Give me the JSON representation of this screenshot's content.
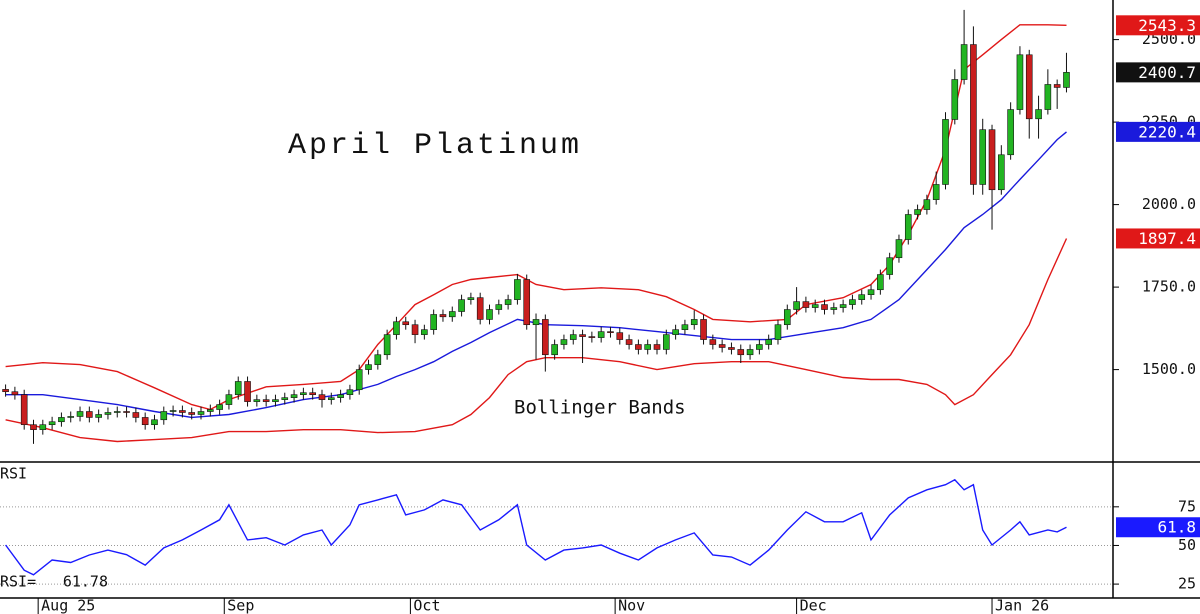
{
  "chart_data": [
    {
      "type": "candlestick",
      "title": "April Platinum",
      "annotation": "Bollinger Bands",
      "xlim": [
        -0.6,
        119
      ],
      "ylim": [
        1220,
        2620
      ],
      "yticks": [
        {
          "value": 1500,
          "label": "1500.0"
        },
        {
          "value": 1750,
          "label": "1750.0"
        },
        {
          "value": 2000,
          "label": "2000.0"
        },
        {
          "value": 2250,
          "label": "2250.0"
        },
        {
          "value": 2500,
          "label": "2500.0"
        }
      ],
      "up_color": "#22b422",
      "down_color": "#c81e1e",
      "last_color": "#111111",
      "open": [
        1440,
        1433,
        1424,
        1333,
        1318,
        1333,
        1342,
        1355,
        1358,
        1373,
        1355,
        1364,
        1370,
        1373,
        1370,
        1355,
        1333,
        1348,
        1373,
        1376,
        1370,
        1364,
        1373,
        1379,
        1394,
        1424,
        1464,
        1403,
        1409,
        1403,
        1409,
        1415,
        1424,
        1430,
        1424,
        1409,
        1415,
        1424,
        1439,
        1500,
        1515,
        1545,
        1606,
        1645,
        1636,
        1606,
        1621,
        1667,
        1660,
        1676,
        1712,
        1718,
        1652,
        1682,
        1697,
        1712,
        1773,
        1636,
        1652,
        1545,
        1576,
        1591,
        1606,
        1600,
        1597,
        1615,
        1612,
        1591,
        1576,
        1561,
        1576,
        1561,
        1606,
        1621,
        1636,
        1652,
        1591,
        1576,
        1567,
        1561,
        1545,
        1561,
        1576,
        1591,
        1636,
        1682,
        1706,
        1688,
        1697,
        1682,
        1688,
        1697,
        1712,
        1727,
        1742,
        1788,
        1839,
        1894,
        1970,
        1985,
        2015,
        2061,
        2258,
        2379,
        2485,
        2061,
        2227,
        2045,
        2151,
        2288,
        2454,
        2260,
        2288,
        2364,
        2355
      ],
      "high": [
        1455,
        1448,
        1439,
        1348,
        1348,
        1357,
        1370,
        1373,
        1388,
        1388,
        1379,
        1385,
        1388,
        1388,
        1385,
        1370,
        1363,
        1388,
        1391,
        1391,
        1385,
        1388,
        1394,
        1409,
        1439,
        1479,
        1479,
        1424,
        1424,
        1424,
        1430,
        1439,
        1445,
        1445,
        1439,
        1430,
        1439,
        1454,
        1515,
        1530,
        1560,
        1621,
        1660,
        1660,
        1651,
        1636,
        1682,
        1682,
        1691,
        1727,
        1733,
        1733,
        1697,
        1712,
        1727,
        1790,
        1788,
        1670,
        1667,
        1591,
        1606,
        1621,
        1621,
        1615,
        1630,
        1630,
        1627,
        1606,
        1591,
        1591,
        1591,
        1621,
        1636,
        1651,
        1680,
        1667,
        1606,
        1591,
        1582,
        1576,
        1576,
        1591,
        1606,
        1651,
        1697,
        1750,
        1721,
        1712,
        1712,
        1703,
        1712,
        1727,
        1742,
        1757,
        1803,
        1854,
        1909,
        1985,
        2000,
        2030,
        2100,
        2280,
        2410,
        2590,
        2540,
        2260,
        2242,
        2180,
        2310,
        2480,
        2469,
        2330,
        2410,
        2379,
        2460
      ],
      "low": [
        1418,
        1409,
        1318,
        1275,
        1303,
        1318,
        1327,
        1340,
        1343,
        1340,
        1340,
        1349,
        1355,
        1355,
        1340,
        1318,
        1318,
        1333,
        1358,
        1355,
        1349,
        1349,
        1358,
        1364,
        1379,
        1409,
        1388,
        1388,
        1388,
        1388,
        1394,
        1400,
        1409,
        1409,
        1385,
        1394,
        1400,
        1409,
        1424,
        1485,
        1500,
        1530,
        1591,
        1621,
        1580,
        1591,
        1606,
        1645,
        1645,
        1661,
        1697,
        1637,
        1637,
        1667,
        1682,
        1697,
        1621,
        1530,
        1494,
        1530,
        1561,
        1576,
        1520,
        1582,
        1582,
        1597,
        1576,
        1561,
        1546,
        1546,
        1546,
        1546,
        1591,
        1606,
        1621,
        1576,
        1561,
        1552,
        1546,
        1520,
        1530,
        1546,
        1561,
        1576,
        1621,
        1667,
        1673,
        1673,
        1667,
        1667,
        1673,
        1682,
        1697,
        1712,
        1727,
        1773,
        1824,
        1879,
        1955,
        1970,
        2000,
        2046,
        2243,
        2364,
        2030,
        2030,
        1924,
        2030,
        2136,
        2273,
        2200,
        2200,
        2273,
        2290,
        2340
      ],
      "close": [
        1433,
        1424,
        1333,
        1318,
        1333,
        1342,
        1355,
        1358,
        1373,
        1355,
        1364,
        1370,
        1373,
        1370,
        1355,
        1333,
        1348,
        1373,
        1376,
        1370,
        1364,
        1373,
        1379,
        1394,
        1424,
        1464,
        1403,
        1409,
        1403,
        1409,
        1415,
        1424,
        1430,
        1424,
        1409,
        1415,
        1424,
        1439,
        1500,
        1515,
        1545,
        1606,
        1645,
        1636,
        1606,
        1621,
        1667,
        1660,
        1676,
        1712,
        1718,
        1652,
        1682,
        1697,
        1712,
        1773,
        1636,
        1652,
        1545,
        1576,
        1591,
        1606,
        1600,
        1597,
        1615,
        1612,
        1591,
        1576,
        1561,
        1576,
        1561,
        1606,
        1621,
        1636,
        1652,
        1591,
        1576,
        1567,
        1561,
        1545,
        1561,
        1576,
        1591,
        1636,
        1682,
        1706,
        1688,
        1697,
        1682,
        1688,
        1697,
        1712,
        1727,
        1742,
        1788,
        1839,
        1894,
        1970,
        1985,
        2015,
        2061,
        2258,
        2379,
        2485,
        2061,
        2227,
        2045,
        2151,
        2288,
        2454,
        2260,
        2288,
        2364,
        2355,
        2400.7
      ],
      "bands": [
        {
          "color": "#e01818",
          "x": [
            0,
            4,
            8,
            12,
            16,
            20,
            22,
            24,
            28,
            32,
            36,
            38,
            40,
            42,
            44,
            46,
            48,
            50,
            52,
            55,
            57,
            60,
            64,
            68,
            71,
            74,
            76,
            80,
            84,
            86,
            90,
            93,
            95,
            97,
            99,
            101,
            102,
            103,
            105,
            107,
            109,
            112,
            114
          ],
          "values": [
            1509,
            1521,
            1515,
            1494,
            1445,
            1394,
            1379,
            1409,
            1448,
            1455,
            1464,
            1500,
            1576,
            1636,
            1697,
            1727,
            1758,
            1773,
            1779,
            1788,
            1758,
            1742,
            1748,
            1742,
            1721,
            1682,
            1652,
            1645,
            1652,
            1697,
            1718,
            1758,
            1818,
            1909,
            2015,
            2167,
            2288,
            2409,
            2454,
            2500,
            2545,
            2545,
            2543.3
          ]
        },
        {
          "color": "#1a1adc",
          "x": [
            0,
            4,
            8,
            12,
            16,
            20,
            24,
            28,
            32,
            36,
            40,
            42,
            44,
            46,
            48,
            50,
            52,
            55,
            58,
            62,
            66,
            70,
            74,
            78,
            82,
            86,
            90,
            93,
            96,
            99,
            101,
            103,
            105,
            107,
            109,
            111,
            113,
            114
          ],
          "values": [
            1424,
            1424,
            1409,
            1394,
            1373,
            1355,
            1364,
            1385,
            1409,
            1424,
            1455,
            1479,
            1500,
            1524,
            1555,
            1582,
            1612,
            1652,
            1636,
            1633,
            1627,
            1615,
            1603,
            1591,
            1591,
            1609,
            1627,
            1652,
            1712,
            1803,
            1864,
            1930,
            1970,
            2015,
            2076,
            2136,
            2197,
            2220.4
          ]
        },
        {
          "color": "#e01818",
          "x": [
            0,
            4,
            8,
            12,
            16,
            20,
            24,
            28,
            32,
            36,
            40,
            44,
            48,
            50,
            52,
            54,
            56,
            58,
            62,
            66,
            70,
            74,
            78,
            82,
            86,
            90,
            93,
            96,
            99,
            101,
            102,
            104,
            106,
            108,
            110,
            112,
            114
          ],
          "values": [
            1348,
            1324,
            1294,
            1282,
            1288,
            1294,
            1312,
            1312,
            1318,
            1318,
            1309,
            1312,
            1333,
            1364,
            1415,
            1485,
            1524,
            1536,
            1536,
            1524,
            1500,
            1518,
            1524,
            1524,
            1500,
            1476,
            1470,
            1470,
            1455,
            1424,
            1394,
            1424,
            1485,
            1545,
            1636,
            1773,
            1897.4
          ]
        }
      ]
    },
    {
      "type": "line",
      "label": "RSI",
      "readout_label": "RSI=",
      "color": "#1a1aff",
      "last_label": "61.8",
      "xlim": [
        -0.6,
        119
      ],
      "ylim": [
        16,
        104
      ],
      "yticks": [
        25,
        50,
        75
      ],
      "grid": true,
      "xticks": [
        {
          "value": 3.5,
          "label": "Aug 25"
        },
        {
          "value": 23.5,
          "label": "Sep"
        },
        {
          "value": 43.5,
          "label": "Oct"
        },
        {
          "value": 65.5,
          "label": "Nov"
        },
        {
          "value": 85,
          "label": "Dec"
        },
        {
          "value": 106,
          "label": "Jan 26"
        }
      ],
      "x": [
        0,
        2,
        3,
        5,
        7,
        9,
        11,
        13,
        15,
        17,
        19,
        21,
        23,
        24,
        26,
        28,
        30,
        32,
        34,
        35,
        37,
        38,
        40,
        42,
        43,
        45,
        47,
        49,
        51,
        53,
        55,
        56,
        58,
        60,
        62,
        64,
        66,
        68,
        70,
        72,
        74,
        76,
        78,
        80,
        82,
        84,
        86,
        88,
        90,
        92,
        93,
        95,
        97,
        99,
        101,
        102,
        103,
        104,
        105,
        106,
        108,
        109,
        110,
        112,
        113,
        114
      ],
      "values": [
        50.3,
        34,
        31,
        40.6,
        39,
        43.8,
        47,
        44,
        37.3,
        48.4,
        53.6,
        60,
        66.6,
        76.3,
        53.6,
        55,
        50.3,
        56.8,
        60,
        50.3,
        63.3,
        76.3,
        79.5,
        82.8,
        69.8,
        73,
        79.5,
        76.3,
        60,
        66.6,
        76.3,
        50.3,
        40.6,
        47,
        48.4,
        50.3,
        45,
        40.6,
        48.4,
        53.6,
        58.1,
        43.8,
        42.5,
        37.3,
        47,
        60,
        71.8,
        65.3,
        65.3,
        71.1,
        53.6,
        69.8,
        80.8,
        86,
        89.3,
        92.5,
        86,
        89.3,
        60,
        50.3,
        60,
        65.3,
        56.8,
        60,
        58.8,
        61.78
      ]
    }
  ]
}
